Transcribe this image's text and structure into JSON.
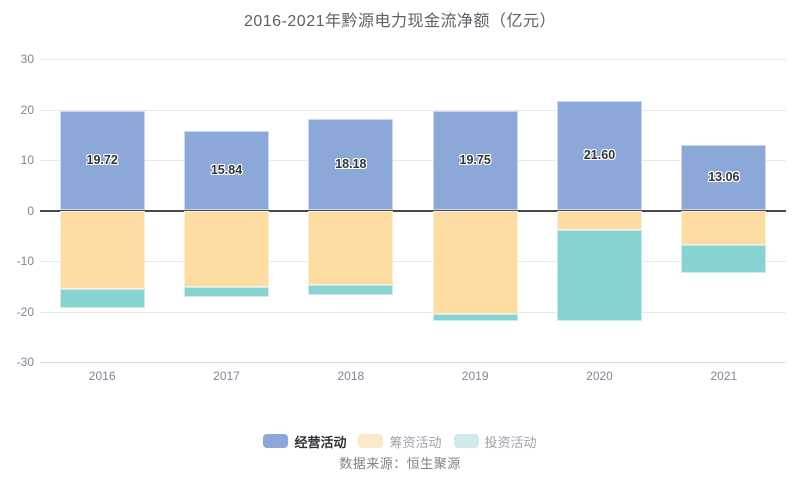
{
  "source": "数据来源：恒生聚源",
  "chart_data": {
    "type": "bar",
    "stacked": true,
    "title": "2016-2021年黔源电力现金流净额（亿元）",
    "xlabel": "",
    "ylabel": "",
    "ylim": [
      -30,
      30
    ],
    "y_ticks": [
      30,
      20,
      10,
      0,
      -10,
      -20,
      -30
    ],
    "grid": true,
    "legend_position": "bottom",
    "categories": [
      "2016",
      "2017",
      "2018",
      "2019",
      "2020",
      "2021"
    ],
    "series": [
      {
        "name": "经营活动",
        "color": "#8CA8D8",
        "legend_color": "#8CA8D8",
        "legend_active": true,
        "show_labels": true,
        "values": [
          19.72,
          15.84,
          18.18,
          19.75,
          21.6,
          13.06
        ],
        "labels": [
          "19.72",
          "15.84",
          "18.18",
          "19.75",
          "21.60",
          "13.06"
        ]
      },
      {
        "name": "筹资活动",
        "color": "#FCDCA0",
        "legend_color": "#FBE9C9",
        "legend_active": false,
        "show_labels": false,
        "values": [
          -15.6,
          -15.1,
          -14.8,
          -20.4,
          -3.8,
          -6.9
        ],
        "labels": []
      },
      {
        "name": "投资活动",
        "color": "#86D3D2",
        "legend_color": "#CEEAE9",
        "legend_active": false,
        "show_labels": false,
        "values": [
          -3.8,
          -2.0,
          -1.9,
          -1.4,
          -18.0,
          -5.4
        ],
        "labels": []
      }
    ]
  }
}
